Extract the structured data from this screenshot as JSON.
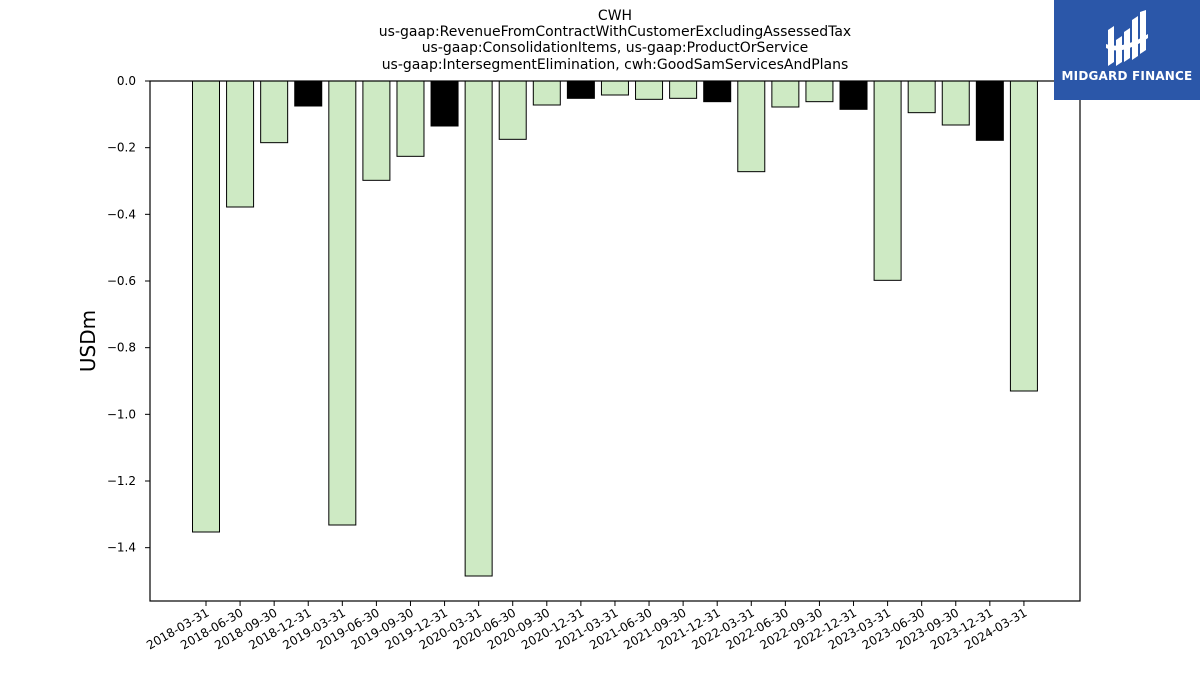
{
  "chart_data": {
    "type": "bar",
    "title_lines": [
      "CWH",
      "us-gaap:RevenueFromContractWithCustomerExcludingAssessedTax",
      "us-gaap:ConsolidationItems, us-gaap:ProductOrService",
      "us-gaap:IntersegmentElimination, cwh:GoodSamServicesAndPlans"
    ],
    "ylabel": "USDm",
    "xlabel": "",
    "ylim": [
      -1.56,
      0.0
    ],
    "yticks": [
      0.0,
      -0.2,
      -0.4,
      -0.6,
      -0.8,
      -1.0,
      -1.2,
      -1.4
    ],
    "ytick_labels": [
      "0.0",
      "−0.2",
      "−0.4",
      "−0.6",
      "−0.8",
      "−1.0",
      "−1.2",
      "−1.4"
    ],
    "grid": false,
    "categories": [
      "2018-03-31",
      "2018-06-30",
      "2018-09-30",
      "2018-12-31",
      "2019-03-31",
      "2019-06-30",
      "2019-09-30",
      "2019-12-31",
      "2020-03-31",
      "2020-06-30",
      "2020-09-30",
      "2020-12-31",
      "2021-03-31",
      "2021-06-30",
      "2021-09-30",
      "2021-12-31",
      "2022-03-31",
      "2022-06-30",
      "2022-09-30",
      "2022-12-31",
      "2023-03-31",
      "2023-06-30",
      "2023-09-30",
      "2023-12-31",
      "2024-03-31"
    ],
    "values": [
      -1.353,
      -0.378,
      -0.185,
      -0.075,
      -1.332,
      -0.298,
      -0.226,
      -0.135,
      -1.485,
      -0.175,
      -0.072,
      -0.052,
      -0.042,
      -0.055,
      -0.052,
      -0.062,
      -0.272,
      -0.078,
      -0.062,
      -0.085,
      -0.598,
      -0.095,
      -0.132,
      -0.178,
      -0.93
    ],
    "bar_colors": [
      "light",
      "light",
      "light",
      "dark",
      "light",
      "light",
      "light",
      "dark",
      "light",
      "light",
      "light",
      "dark",
      "light",
      "light",
      "light",
      "dark",
      "light",
      "light",
      "light",
      "dark",
      "light",
      "light",
      "light",
      "dark",
      "light"
    ],
    "colors": {
      "light": "#ceeac4",
      "dark": "#000000",
      "edge": "#000000"
    }
  },
  "logo": {
    "text": "MIDGARD FINANCE",
    "background": "#2b57a9"
  }
}
